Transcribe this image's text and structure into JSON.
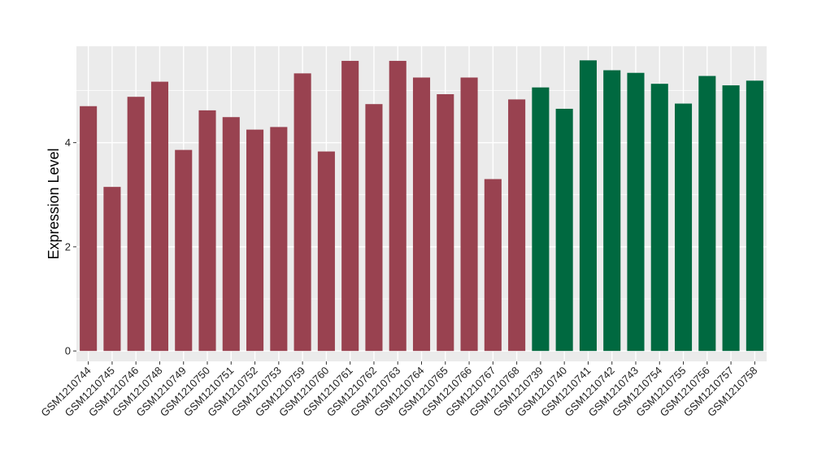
{
  "chart_data": {
    "type": "bar",
    "title": "",
    "xlabel": "",
    "ylabel": "Expression Level",
    "ylim": [
      -0.2,
      5.85
    ],
    "yticks": [
      0,
      2,
      4
    ],
    "grid": true,
    "legend": "none",
    "background": "#ebebeb",
    "grid_color": "#ffffff",
    "categories": [
      "GSM1210744",
      "GSM1210745",
      "GSM1210746",
      "GSM1210748",
      "GSM1210749",
      "GSM1210750",
      "GSM1210751",
      "GSM1210752",
      "GSM1210753",
      "GSM1210759",
      "GSM1210760",
      "GSM1210761",
      "GSM1210762",
      "GSM1210763",
      "GSM1210764",
      "GSM1210765",
      "GSM1210766",
      "GSM1210767",
      "GSM1210768",
      "GSM1210739",
      "GSM1210740",
      "GSM1210741",
      "GSM1210742",
      "GSM1210743",
      "GSM1210754",
      "GSM1210755",
      "GSM1210756",
      "GSM1210757",
      "GSM1210758"
    ],
    "values": [
      4.7,
      3.15,
      4.88,
      5.17,
      3.86,
      4.62,
      4.49,
      4.25,
      4.3,
      5.33,
      3.83,
      5.57,
      4.74,
      5.57,
      5.25,
      4.93,
      5.25,
      3.3,
      4.83,
      5.06,
      4.65,
      5.58,
      5.39,
      5.34,
      5.13,
      4.75,
      5.28,
      5.1,
      5.19
    ],
    "groups": [
      "a",
      "a",
      "a",
      "a",
      "a",
      "a",
      "a",
      "a",
      "a",
      "a",
      "a",
      "a",
      "a",
      "a",
      "a",
      "a",
      "a",
      "a",
      "a",
      "b",
      "b",
      "b",
      "b",
      "b",
      "b",
      "b",
      "b",
      "b",
      "b"
    ],
    "colors": {
      "a": "#994250",
      "b": "#006940"
    }
  }
}
